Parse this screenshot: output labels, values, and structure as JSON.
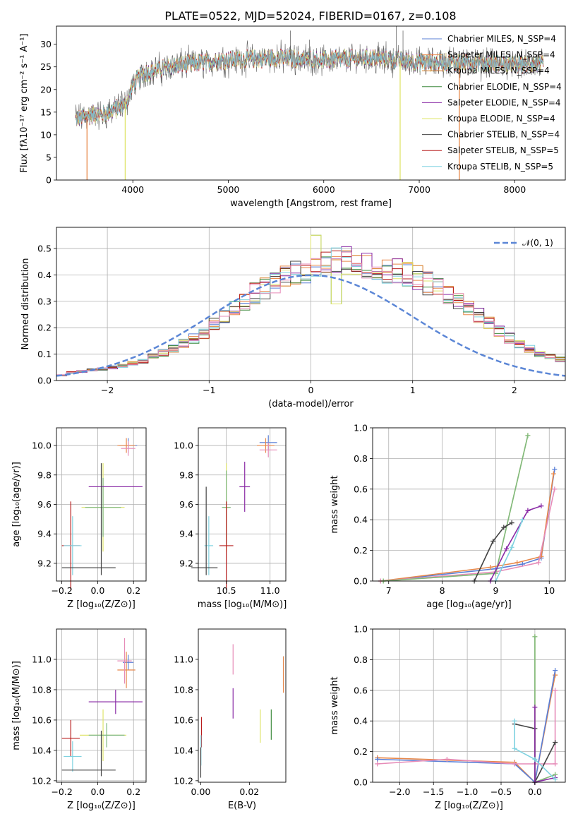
{
  "chart_data": [
    {
      "type": "line",
      "title": "PLATE=0522, MJD=52024, FIBERID=0167, z=0.108",
      "xlabel": "wavelength [Angstrom, rest frame]",
      "ylabel": "Flux [fλ10⁻¹⁷ erg cm⁻² s⁻¹ A⁻¹]",
      "xlim": [
        3200,
        8530
      ],
      "ylim": [
        0,
        34
      ],
      "xticks": [
        4000,
        5000,
        6000,
        7000,
        8000
      ],
      "yticks": [
        0,
        5,
        10,
        15,
        20,
        25,
        30
      ],
      "grid": false,
      "legend_position": "top-right",
      "legend": [
        {
          "name": "Chabrier MILES, N_SSP=4",
          "color": "#5a7fd6"
        },
        {
          "name": "Salpeter MILES, N_SSP=4",
          "color": "#e8884a"
        },
        {
          "name": "Kroupa MILES, N_SSP=4",
          "color": "#d6781f"
        },
        {
          "name": "Chabrier ELODIE, N_SSP=4",
          "color": "#3e8a3e"
        },
        {
          "name": "Salpeter ELODIE, N_SSP=4",
          "color": "#8a2ba6"
        },
        {
          "name": "Kroupa ELODIE, N_SSP=4",
          "color": "#dfe46a"
        },
        {
          "name": "Chabrier STELIB, N_SSP=4",
          "color": "#444444"
        },
        {
          "name": "Salpeter STELIB, N_SSP=5",
          "color": "#b81c1c"
        },
        {
          "name": "Kroupa STELIB, N_SSP=5",
          "color": "#7fd2e0"
        }
      ],
      "continuum": {
        "x": [
          3400,
          3600,
          3700,
          3800,
          3900,
          3950,
          4000,
          4100,
          4300,
          4500,
          5000,
          5500,
          6000,
          6500,
          7000,
          7500,
          8000,
          8300
        ],
        "y": [
          13.5,
          14.5,
          14.5,
          15.5,
          16.5,
          18,
          21,
          23.5,
          24.5,
          25.5,
          26.5,
          27,
          26.5,
          27,
          26,
          26,
          25.5,
          25.5
        ]
      },
      "dropouts": [
        {
          "x": 3520,
          "color": "#e8884a"
        },
        {
          "x": 3920,
          "color": "#dfe46a"
        },
        {
          "x": 6800,
          "color": "#dfe46a"
        },
        {
          "x": 7420,
          "color": "#e8884a"
        }
      ]
    },
    {
      "type": "bar",
      "xlabel": "(data-model)/error",
      "ylabel": "Normed distribution",
      "xlim": [
        -2.5,
        2.5
      ],
      "ylim": [
        0,
        0.58
      ],
      "xticks": [
        -2,
        -1,
        0,
        1,
        2
      ],
      "yticks": [
        0.0,
        0.1,
        0.2,
        0.3,
        0.4,
        0.5
      ],
      "grid": true,
      "legend_position": "top-right",
      "reference": {
        "name": "𝒩(0, 1)",
        "color": "#5b86d6",
        "style": "dashed"
      },
      "bins": {
        "start": -2.6,
        "width": 0.1
      },
      "histogram_envelope": [
        0.01,
        0.02,
        0.03,
        0.035,
        0.04,
        0.045,
        0.05,
        0.055,
        0.065,
        0.075,
        0.09,
        0.105,
        0.12,
        0.14,
        0.16,
        0.18,
        0.21,
        0.24,
        0.27,
        0.3,
        0.33,
        0.35,
        0.37,
        0.39,
        0.41,
        0.42,
        0.43,
        0.44,
        0.45,
        0.46,
        0.45,
        0.44,
        0.43,
        0.42,
        0.41,
        0.4,
        0.39,
        0.37,
        0.35,
        0.33,
        0.31,
        0.28,
        0.25,
        0.22,
        0.19,
        0.16,
        0.14,
        0.12,
        0.1,
        0.09,
        0.08,
        0.07,
        0.06,
        0.05,
        0.04,
        0.035,
        0.03
      ]
    },
    {
      "type": "scatter",
      "xlabel": "Z [log₁₀(Z/Z⊙)]",
      "ylabel": "age  [log₁₀(age/yr)]",
      "xlim": [
        -0.23,
        0.27
      ],
      "ylim": [
        9.08,
        10.12
      ],
      "xticks": [
        -0.2,
        0.0,
        0.2
      ],
      "yticks": [
        9.2,
        9.4,
        9.6,
        9.8,
        10.0
      ],
      "grid": true,
      "crosses": [
        {
          "x": 0.17,
          "y": 10.0,
          "xerr": 0.05,
          "yerr": 0.05,
          "color": "#5a7fd6"
        },
        {
          "x": 0.16,
          "y": 10.0,
          "xerr": 0.05,
          "yerr": 0.05,
          "color": "#e8884a"
        },
        {
          "x": 0.17,
          "y": 9.98,
          "xerr": 0.04,
          "yerr": 0.05,
          "color": "#e68bb8"
        },
        {
          "x": 0.03,
          "y": 9.58,
          "xerr": 0.12,
          "yerr": 0.3,
          "color": "#dfe46a"
        },
        {
          "x": 0.03,
          "y": 9.58,
          "xerr": 0.1,
          "yerr": 0.2,
          "color": "#7fb87f"
        },
        {
          "x": 0.1,
          "y": 9.72,
          "xerr": 0.15,
          "yerr": 0.0,
          "color": "#8a2ba6"
        },
        {
          "x": -0.15,
          "y": 9.32,
          "xerr": 0.05,
          "yerr": 0.3,
          "color": "#b81c1c"
        },
        {
          "x": -0.14,
          "y": 9.32,
          "xerr": 0.05,
          "yerr": 0.2,
          "color": "#7fd2e0"
        },
        {
          "x": -0.05,
          "y": 9.17,
          "xerr": 0.15,
          "yerr": 0.0,
          "color": "#444444"
        },
        {
          "x": 0.02,
          "y": 9.5,
          "xerr": 0.0,
          "yerr": 0.38,
          "color": "#444444"
        }
      ]
    },
    {
      "type": "scatter",
      "xlabel": "mass [log₁₀(M/M⊙)]",
      "ylabel": "",
      "xlim": [
        10.18,
        11.18
      ],
      "ylim": [
        9.08,
        10.12
      ],
      "xticks": [
        10.5,
        11.0
      ],
      "yticks": [
        9.2,
        9.4,
        9.6,
        9.8,
        10.0
      ],
      "grid": true,
      "crosses": [
        {
          "x": 10.98,
          "y": 10.02,
          "xerr": 0.1,
          "yerr": 0.05,
          "color": "#5a7fd6"
        },
        {
          "x": 10.95,
          "y": 10.0,
          "xerr": 0.1,
          "yerr": 0.05,
          "color": "#e8884a"
        },
        {
          "x": 10.98,
          "y": 9.97,
          "xerr": 0.1,
          "yerr": 0.05,
          "color": "#e68bb8"
        },
        {
          "x": 10.5,
          "y": 9.58,
          "xerr": 0.04,
          "yerr": 0.3,
          "color": "#dfe46a"
        },
        {
          "x": 10.5,
          "y": 9.58,
          "xerr": 0.05,
          "yerr": 0.25,
          "color": "#7fb87f"
        },
        {
          "x": 10.71,
          "y": 9.72,
          "xerr": 0.06,
          "yerr": 0.17,
          "color": "#8a2ba6"
        },
        {
          "x": 10.5,
          "y": 9.32,
          "xerr": 0.08,
          "yerr": 0.3,
          "color": "#b81c1c"
        },
        {
          "x": 10.3,
          "y": 9.32,
          "xerr": 0.05,
          "yerr": 0.2,
          "color": "#7fd2e0"
        },
        {
          "x": 10.25,
          "y": 9.17,
          "xerr": 0.15,
          "yerr": 0.0,
          "color": "#444444"
        },
        {
          "x": 10.27,
          "y": 9.42,
          "xerr": 0.0,
          "yerr": 0.3,
          "color": "#444444"
        }
      ]
    },
    {
      "type": "line",
      "xlabel": "age  [log₁₀(age/yr)]",
      "ylabel": "mass weight",
      "xlim": [
        6.7,
        10.3
      ],
      "ylim": [
        0,
        1
      ],
      "xticks": [
        7,
        8,
        9,
        10
      ],
      "yticks": [
        0.0,
        0.2,
        0.4,
        0.6,
        0.8,
        1.0
      ],
      "grid": true,
      "series": [
        {
          "color": "#5a7fd6",
          "x": [
            6.85,
            9.0,
            9.5,
            9.85,
            10.1
          ],
          "y": [
            0.0,
            0.08,
            0.11,
            0.15,
            0.73
          ]
        },
        {
          "color": "#e8884a",
          "x": [
            6.85,
            8.9,
            9.4,
            9.85,
            10.08
          ],
          "y": [
            0.0,
            0.09,
            0.12,
            0.16,
            0.7
          ]
        },
        {
          "color": "#e68bb8",
          "x": [
            6.85,
            9.0,
            9.8,
            10.1
          ],
          "y": [
            0.0,
            0.06,
            0.12,
            0.6
          ]
        },
        {
          "color": "#dfe46a",
          "x": [
            6.9,
            9.0,
            9.6
          ],
          "y": [
            0.0,
            0.05,
            0.95
          ]
        },
        {
          "color": "#7fb87f",
          "x": [
            6.9,
            9.0,
            9.6
          ],
          "y": [
            0.0,
            0.05,
            0.95
          ]
        },
        {
          "color": "#8a2ba6",
          "x": [
            8.9,
            9.2,
            9.6,
            9.85
          ],
          "y": [
            0.0,
            0.21,
            0.46,
            0.49
          ]
        },
        {
          "color": "#444444",
          "x": [
            8.6,
            8.95,
            9.15,
            9.3
          ],
          "y": [
            0.0,
            0.26,
            0.35,
            0.38
          ]
        },
        {
          "color": "#7fd2e0",
          "x": [
            9.0,
            9.3,
            9.5
          ],
          "y": [
            0.0,
            0.22,
            0.4
          ]
        }
      ]
    },
    {
      "type": "scatter",
      "xlabel": "Z [log₁₀(Z/Z⊙)]",
      "ylabel": "mass [log₁₀(M/M⊙)]",
      "xlim": [
        -0.23,
        0.27
      ],
      "ylim": [
        10.19,
        11.2
      ],
      "xticks": [
        -0.2,
        0.0,
        0.2
      ],
      "yticks": [
        10.2,
        10.4,
        10.6,
        10.8,
        11.0
      ],
      "grid": true,
      "crosses": [
        {
          "x": 0.17,
          "y": 10.98,
          "xerr": 0.03,
          "yerr": 0.05,
          "color": "#5a7fd6"
        },
        {
          "x": 0.16,
          "y": 10.93,
          "xerr": 0.05,
          "yerr": 0.12,
          "color": "#e8884a"
        },
        {
          "x": 0.15,
          "y": 10.99,
          "xerr": 0.04,
          "yerr": 0.15,
          "color": "#e68bb8"
        },
        {
          "x": 0.03,
          "y": 10.5,
          "xerr": 0.13,
          "yerr": 0.17,
          "color": "#dfe46a"
        },
        {
          "x": 0.05,
          "y": 10.5,
          "xerr": 0.1,
          "yerr": 0.08,
          "color": "#7fb87f"
        },
        {
          "x": 0.1,
          "y": 10.72,
          "xerr": 0.15,
          "yerr": 0.08,
          "color": "#8a2ba6"
        },
        {
          "x": -0.15,
          "y": 10.48,
          "xerr": 0.05,
          "yerr": 0.12,
          "color": "#b81c1c"
        },
        {
          "x": -0.14,
          "y": 10.36,
          "xerr": 0.05,
          "yerr": 0.1,
          "color": "#7fd2e0"
        },
        {
          "x": -0.05,
          "y": 10.27,
          "xerr": 0.15,
          "yerr": 0.0,
          "color": "#444444"
        },
        {
          "x": 0.02,
          "y": 10.38,
          "xerr": 0.0,
          "yerr": 0.15,
          "color": "#444444"
        }
      ]
    },
    {
      "type": "scatter",
      "xlabel": "E(B-V)",
      "ylabel": "",
      "xlim": [
        -0.001,
        0.035
      ],
      "ylim": [
        10.19,
        11.2
      ],
      "xticks": [
        0.0,
        0.02
      ],
      "yticks": [
        10.2,
        10.4,
        10.6,
        10.8,
        11.0
      ],
      "grid": false,
      "crosses": [
        {
          "x": 0.034,
          "y": 10.92,
          "xerr": 0.0,
          "yerr": 0.1,
          "color": "#5a7fd6"
        },
        {
          "x": 0.034,
          "y": 10.9,
          "xerr": 0.0,
          "yerr": 0.12,
          "color": "#e8884a"
        },
        {
          "x": 0.0133,
          "y": 11.0,
          "xerr": 0.0,
          "yerr": 0.1,
          "color": "#e68bb8"
        },
        {
          "x": 0.0133,
          "y": 10.71,
          "xerr": 0.0,
          "yerr": 0.1,
          "color": "#8a2ba6"
        },
        {
          "x": 0.0245,
          "y": 10.56,
          "xerr": 0.0,
          "yerr": 0.11,
          "color": "#dfe46a"
        },
        {
          "x": 0.029,
          "y": 10.57,
          "xerr": 0.0,
          "yerr": 0.1,
          "color": "#3e8a3e"
        },
        {
          "x": 0.0003,
          "y": 10.52,
          "xerr": 0.0,
          "yerr": 0.1,
          "color": "#b81c1c"
        },
        {
          "x": 0.0001,
          "y": 10.4,
          "xerr": 0.0,
          "yerr": 0.1,
          "color": "#7fd2e0"
        },
        {
          "x": 0.0,
          "y": 10.32,
          "xerr": 0.0,
          "yerr": 0.1,
          "color": "#444444"
        }
      ]
    },
    {
      "type": "line",
      "xlabel": "Z [log₁₀(Z/Z⊙)]",
      "ylabel": "mass weight",
      "xlim": [
        -2.4,
        0.45
      ],
      "ylim": [
        0,
        1
      ],
      "xticks": [
        -2.0,
        -1.5,
        -1.0,
        -0.5,
        0.0
      ],
      "yticks": [
        0.0,
        0.2,
        0.4,
        0.6,
        0.8,
        1.0
      ],
      "grid": true,
      "series": [
        {
          "color": "#e8884a",
          "x": [
            -2.33,
            -0.3,
            0.0,
            0.3,
            0.3
          ],
          "y": [
            0.16,
            0.13,
            0.0,
            0.7,
            0.7
          ]
        },
        {
          "color": "#5a7fd6",
          "x": [
            -2.33,
            -0.3,
            0.0,
            0.3
          ],
          "y": [
            0.15,
            0.12,
            0.0,
            0.73
          ]
        },
        {
          "color": "#e68bb8",
          "x": [
            -2.33,
            -1.3,
            -0.3,
            0.0,
            0.3,
            0.3
          ],
          "y": [
            0.12,
            0.15,
            0.12,
            0.12,
            0.12,
            0.6
          ]
        },
        {
          "color": "#dfe46a",
          "x": [
            0.0,
            0.0,
            0.3
          ],
          "y": [
            0.95,
            0.0,
            0.05
          ]
        },
        {
          "color": "#7fb87f",
          "x": [
            0.0,
            0.0,
            0.3
          ],
          "y": [
            0.95,
            0.0,
            0.05
          ]
        },
        {
          "color": "#444444",
          "x": [
            -0.3,
            0.0,
            0.0,
            0.3
          ],
          "y": [
            0.38,
            0.35,
            0.0,
            0.26
          ]
        },
        {
          "color": "#8a2ba6",
          "x": [
            0.0,
            0.0,
            0.3
          ],
          "y": [
            0.49,
            0.0,
            0.03
          ]
        },
        {
          "color": "#7fd2e0",
          "x": [
            -0.3,
            -0.3,
            0.0,
            0.3
          ],
          "y": [
            0.4,
            0.22,
            0.15,
            0.02
          ]
        }
      ]
    }
  ]
}
